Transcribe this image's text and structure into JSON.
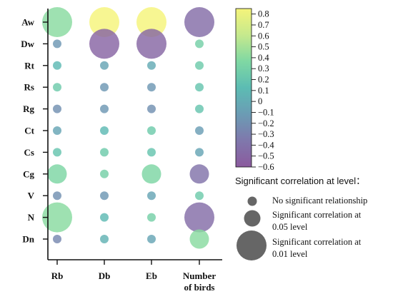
{
  "chart_data": {
    "type": "bubble-heatmap",
    "rows": [
      "Aw",
      "Dw",
      "Rt",
      "Rs",
      "Rg",
      "Ct",
      "Cs",
      "Cg",
      "V",
      "N",
      "Dn"
    ],
    "columns": [
      [
        "Rb"
      ],
      [
        "Db"
      ],
      [
        "Eb"
      ],
      [
        "Number",
        "of birds"
      ]
    ],
    "values": [
      [
        0.4,
        0.85,
        0.85,
        -0.45
      ],
      [
        -0.15,
        -0.52,
        -0.5,
        0.3
      ],
      [
        0.1,
        -0.05,
        0.0,
        0.25
      ],
      [
        0.25,
        -0.15,
        -0.15,
        0.2
      ],
      [
        -0.2,
        -0.15,
        -0.2,
        0.2
      ],
      [
        -0.05,
        0.1,
        0.25,
        -0.1
      ],
      [
        0.2,
        0.25,
        0.2,
        -0.05
      ],
      [
        0.35,
        0.3,
        0.35,
        -0.4
      ],
      [
        -0.2,
        -0.15,
        -0.05,
        0.25
      ],
      [
        0.4,
        0.1,
        0.3,
        -0.45
      ],
      [
        -0.25,
        0.05,
        -0.05,
        0.4
      ]
    ],
    "significance": [
      [
        "0.01",
        "0.01",
        "0.01",
        "0.01"
      ],
      [
        "none",
        "0.01",
        "0.01",
        "none"
      ],
      [
        "none",
        "none",
        "none",
        "none"
      ],
      [
        "none",
        "none",
        "none",
        "none"
      ],
      [
        "none",
        "none",
        "none",
        "none"
      ],
      [
        "none",
        "none",
        "none",
        "none"
      ],
      [
        "none",
        "none",
        "none",
        "none"
      ],
      [
        "0.05",
        "none",
        "0.05",
        "0.05"
      ],
      [
        "none",
        "none",
        "none",
        "none"
      ],
      [
        "0.01",
        "none",
        "none",
        "0.01"
      ],
      [
        "none",
        "none",
        "none",
        "0.05"
      ]
    ],
    "colorbar": {
      "range": [
        -0.6,
        0.85
      ],
      "ticks": [
        "0.8",
        "0.7",
        "0.6",
        "0.5",
        "0.4",
        "0.3",
        "0.2",
        "0.1",
        "0",
        "−0.1",
        "−0.2",
        "−0.3",
        "−0.4",
        "−0.5",
        "−0.6"
      ],
      "tick_values": [
        0.8,
        0.7,
        0.6,
        0.5,
        0.4,
        0.3,
        0.2,
        0.1,
        0,
        -0.1,
        -0.2,
        -0.3,
        -0.4,
        -0.5,
        -0.6
      ],
      "colors": [
        "#8b5a9e",
        "#7f78ac",
        "#6b9cb4",
        "#5cbcb3",
        "#7fd8a3",
        "#c6e98d",
        "#f5f47a"
      ]
    },
    "size_legend": {
      "title": "Significant correlation at level：",
      "items": [
        {
          "level": "none",
          "lines": [
            "No significant relationship"
          ]
        },
        {
          "level": "0.05",
          "lines": [
            "Significant correlation at",
            "0.05 level"
          ]
        },
        {
          "level": "0.01",
          "lines": [
            "Significant correlation at",
            "0.01 level"
          ]
        }
      ],
      "marker_color": "#666666"
    }
  }
}
